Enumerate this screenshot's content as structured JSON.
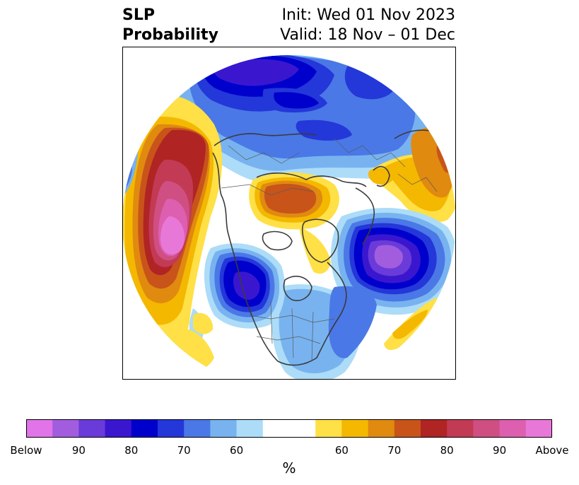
{
  "title": {
    "left_line1": "SLP",
    "left_line2": "Probability",
    "right_line1": "Init: Wed 01 Nov 2023",
    "right_line2": "Valid: 18 Nov – 01 Dec"
  },
  "colorbar": {
    "colors": [
      "#e074e8",
      "#a25ddf",
      "#6a3bd8",
      "#3a17cf",
      "#0000cc",
      "#2437d9",
      "#4a78e6",
      "#78b3f0",
      "#acdcf8",
      "#ffffff",
      "#ffffff",
      "#ffe046",
      "#f4b800",
      "#e08a10",
      "#c8541a",
      "#b02424",
      "#c23a54",
      "#cf4f82",
      "#dd5fb0",
      "#e878d8"
    ],
    "tick_labels": [
      "Below",
      "90",
      "80",
      "70",
      "60",
      "60",
      "70",
      "80",
      "90",
      "Above"
    ],
    "unit": "%"
  }
}
